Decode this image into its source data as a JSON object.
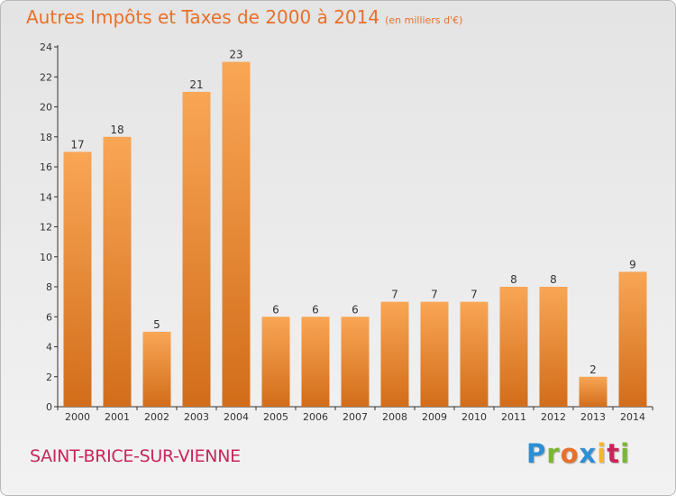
{
  "header": {
    "title": "Autres Impôts et Taxes de 2000 à 2014",
    "unit": "(en milliers d'€)"
  },
  "footer": {
    "commune": "SAINT-BRICE-SUR-VIENNE",
    "brand": "Proxiti",
    "brand_colors": [
      "#2d8fd4",
      "#7cb733",
      "#e8702a",
      "#2d8fd4",
      "#f2b72a",
      "#c8265a",
      "#7cb733"
    ]
  },
  "colors": {
    "title": "#e8702a",
    "commune": "#c8265a",
    "bar_light": "#f9a655",
    "bar_dark": "#d26d1a",
    "axis": "#333333"
  },
  "chart_data": {
    "type": "bar",
    "title": "Autres Impôts et Taxes de 2000 à 2014",
    "subtitle": "(en milliers d'€)",
    "xlabel": "",
    "ylabel": "",
    "categories": [
      "2000",
      "2001",
      "2002",
      "2003",
      "2004",
      "2005",
      "2006",
      "2007",
      "2008",
      "2009",
      "2010",
      "2011",
      "2012",
      "2013",
      "2014"
    ],
    "values": [
      17,
      18,
      5,
      21,
      23,
      6,
      6,
      6,
      7,
      7,
      7,
      8,
      8,
      2,
      9
    ],
    "ylim": [
      0,
      24
    ],
    "yticks": [
      0,
      2,
      4,
      6,
      8,
      10,
      12,
      14,
      16,
      18,
      20,
      22,
      24
    ],
    "grid": false,
    "data_labels": true
  }
}
